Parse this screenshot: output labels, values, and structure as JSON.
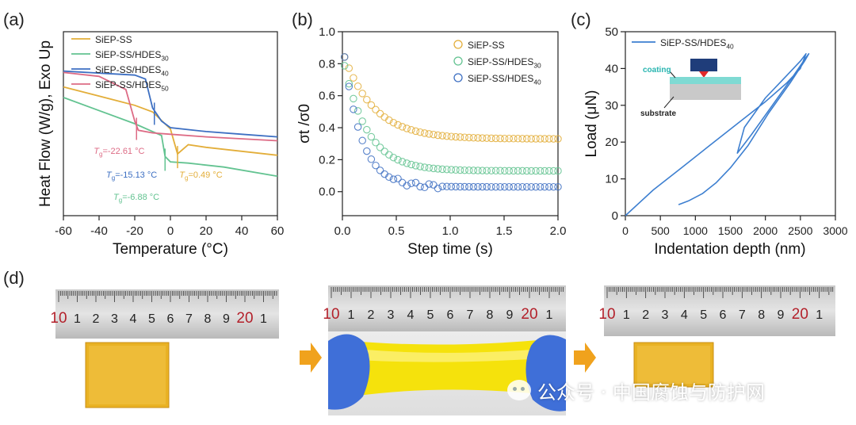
{
  "panel_labels": {
    "a": "(a)",
    "b": "(b)",
    "c": "(c)",
    "d": "(d)"
  },
  "colors": {
    "yellow": "#e3ae3a",
    "green": "#63c391",
    "blue": "#3d6fc2",
    "pink": "#dd6b85",
    "c_blue": "#3d7fd0"
  },
  "icons": [
    "arrow-right-icon",
    "arrow-right-icon",
    "wechat-logo-icon"
  ],
  "watermark": {
    "text": "公众号 · 中国腐蚀与防护网"
  },
  "photos": {
    "ruler_ticks": [
      "10",
      "1",
      "2",
      "3",
      "4",
      "5",
      "6",
      "7",
      "8",
      "9",
      "20",
      "1"
    ]
  },
  "chart_data": [
    {
      "type": "line",
      "panel": "a",
      "xlabel": "Temperature (°C)",
      "ylabel": "Heat Flow (W/g), Exo Up",
      "xlim": [
        -60,
        60
      ],
      "xticks": [
        "-60",
        "-40",
        "-20",
        "0",
        "20",
        "40",
        "60"
      ],
      "legend": [
        "SiEP-SS",
        "SiEP-SS/HDES30",
        "SiEP-SS/HDES40",
        "SiEP-SS/HDES50"
      ],
      "legend_position": "top-left",
      "series": [
        {
          "name": "SiEP-SS",
          "color": "#e3ae3a",
          "x": [
            -60,
            -20,
            -10,
            0,
            4,
            10,
            20,
            40,
            60
          ],
          "y": [
            5.4,
            4.7,
            4.45,
            3.8,
            2.85,
            3.2,
            3.1,
            2.95,
            2.8
          ]
        },
        {
          "name": "SiEP-SS/HDES30",
          "color": "#63c391",
          "x": [
            -60,
            -20,
            -10,
            -5,
            -3,
            0,
            10,
            30,
            60
          ],
          "y": [
            5.0,
            4.0,
            3.7,
            3.55,
            2.75,
            2.55,
            2.5,
            2.35,
            2.0
          ]
        },
        {
          "name": "SiEP-SS/HDES40",
          "color": "#3d6fc2",
          "x": [
            -60,
            -20,
            -14,
            -10,
            -5,
            0,
            20,
            40,
            60
          ],
          "y": [
            6.0,
            5.85,
            5.7,
            4.6,
            4.1,
            3.85,
            3.7,
            3.6,
            3.5
          ]
        },
        {
          "name": "SiEP-SS/HDES50",
          "color": "#dd6b85",
          "x": [
            -60,
            -40,
            -25,
            -20,
            -18,
            -10,
            0,
            20,
            60
          ],
          "y": [
            5.95,
            5.8,
            5.3,
            4.1,
            3.75,
            3.65,
            3.6,
            3.5,
            3.35
          ]
        }
      ],
      "annotations": [
        {
          "series": "SiEP-SS/HDES50",
          "sub": "g",
          "text": "=-22.61 °C",
          "x": -19,
          "tx": -43,
          "ty": 2.85,
          "color": "#dd6b85"
        },
        {
          "series": "SiEP-SS/HDES40",
          "sub": "g",
          "text": "=-15.13 °C",
          "x": -9,
          "tx": -36,
          "ty": 1.95,
          "color": "#3d6fc2"
        },
        {
          "series": "SiEP-SS/HDES30",
          "sub": "g",
          "text": "=-6.88 °C",
          "x": -3,
          "tx": -32,
          "ty": 1.1,
          "color": "#63c391"
        },
        {
          "series": "SiEP-SS",
          "sub": "g",
          "text": "=0.49 °C",
          "x": 4,
          "tx": 5,
          "ty": 1.95,
          "color": "#e3ae3a"
        }
      ]
    },
    {
      "type": "scatter",
      "panel": "b",
      "xlabel": "Step time (s)",
      "ylabel": "σt /σ0",
      "xlim": [
        0.0,
        2.0
      ],
      "ylim": [
        -0.15,
        1.0
      ],
      "xticks": [
        "0.0",
        "0.5",
        "1.0",
        "1.5",
        "2.0"
      ],
      "yticks": [
        "0.0",
        "0.2",
        "0.4",
        "0.6",
        "0.8",
        "1.0"
      ],
      "legend": [
        "SiEP-SS",
        "SiEP-SS/HDES30",
        "SiEP-SS/HDES40"
      ],
      "legend_position": "top-right",
      "series": [
        {
          "name": "SiEP-SS",
          "color": "#e3ae3a",
          "initial": 0.88,
          "final": 0.33,
          "tau": 0.28
        },
        {
          "name": "SiEP-SS/HDES30",
          "color": "#63c391",
          "initial": 0.85,
          "final": 0.13,
          "tau": 0.22
        },
        {
          "name": "SiEP-SS/HDES40",
          "color": "#3d6fc2",
          "initial": 0.95,
          "final": 0.03,
          "tau": 0.16
        }
      ]
    },
    {
      "type": "line",
      "panel": "c",
      "xlabel": "Indentation depth (nm)",
      "ylabel": "Load (μN)",
      "xlim": [
        0,
        3000
      ],
      "ylim": [
        0,
        50
      ],
      "xticks": [
        "0",
        "500",
        "1000",
        "1500",
        "2000",
        "2500",
        "3000"
      ],
      "yticks": [
        "0",
        "10",
        "20",
        "30",
        "40",
        "50"
      ],
      "legend": [
        "SiEP-SS/HDES40"
      ],
      "legend_position": "top-left",
      "inset_labels": {
        "coating": "coating",
        "substrate": "substrate"
      },
      "series": [
        {
          "name": "SiEP-SS/HDES40",
          "color": "#3d7fd0",
          "x": [
            0,
            400,
            800,
            1200,
            1600,
            2000,
            2300,
            2500,
            2560,
            2580,
            2500,
            2300,
            2000,
            1700,
            1600,
            1800,
            2100,
            2400,
            2580,
            2620,
            2560,
            2350,
            2050,
            1750,
            1500,
            1300,
            1100,
            900,
            760
          ],
          "y": [
            0,
            7,
            13,
            19,
            25,
            31,
            36,
            40,
            43,
            44,
            42,
            38,
            32,
            24,
            17,
            22,
            30,
            38,
            43,
            44,
            42,
            36,
            28,
            19,
            13,
            9,
            6,
            4,
            3
          ]
        }
      ]
    }
  ]
}
